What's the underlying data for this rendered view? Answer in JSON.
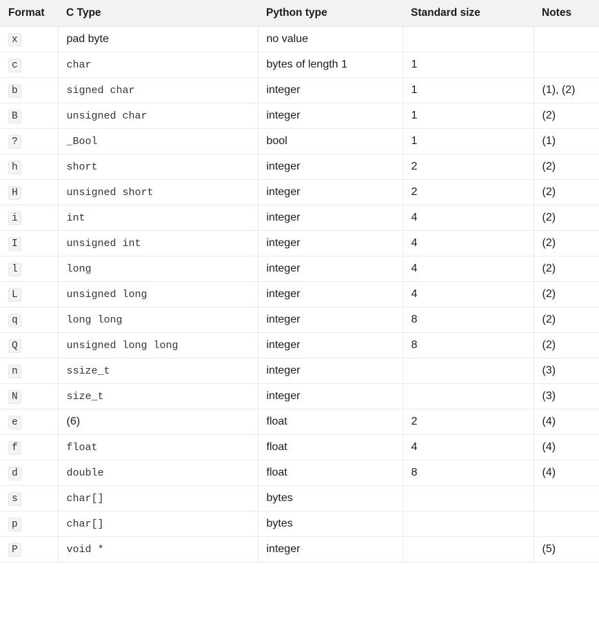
{
  "headers": {
    "format": "Format",
    "ctype": "C Type",
    "pytype": "Python type",
    "size": "Standard size",
    "notes": "Notes"
  },
  "rows": [
    {
      "format": "x",
      "ctype": "pad byte",
      "ctype_mono": false,
      "pytype": "no value",
      "size": "",
      "notes": ""
    },
    {
      "format": "c",
      "ctype": "char",
      "ctype_mono": true,
      "pytype": "bytes of length 1",
      "size": "1",
      "notes": ""
    },
    {
      "format": "b",
      "ctype": "signed char",
      "ctype_mono": true,
      "pytype": "integer",
      "size": "1",
      "notes": "(1), (2)"
    },
    {
      "format": "B",
      "ctype": "unsigned char",
      "ctype_mono": true,
      "pytype": "integer",
      "size": "1",
      "notes": "(2)"
    },
    {
      "format": "?",
      "ctype": "_Bool",
      "ctype_mono": true,
      "pytype": "bool",
      "size": "1",
      "notes": "(1)"
    },
    {
      "format": "h",
      "ctype": "short",
      "ctype_mono": true,
      "pytype": "integer",
      "size": "2",
      "notes": "(2)"
    },
    {
      "format": "H",
      "ctype": "unsigned short",
      "ctype_mono": true,
      "pytype": "integer",
      "size": "2",
      "notes": "(2)"
    },
    {
      "format": "i",
      "ctype": "int",
      "ctype_mono": true,
      "pytype": "integer",
      "size": "4",
      "notes": "(2)"
    },
    {
      "format": "I",
      "ctype": "unsigned int",
      "ctype_mono": true,
      "pytype": "integer",
      "size": "4",
      "notes": "(2)"
    },
    {
      "format": "l",
      "ctype": "long",
      "ctype_mono": true,
      "pytype": "integer",
      "size": "4",
      "notes": "(2)"
    },
    {
      "format": "L",
      "ctype": "unsigned long",
      "ctype_mono": true,
      "pytype": "integer",
      "size": "4",
      "notes": "(2)"
    },
    {
      "format": "q",
      "ctype": "long long",
      "ctype_mono": true,
      "pytype": "integer",
      "size": "8",
      "notes": "(2)"
    },
    {
      "format": "Q",
      "ctype": "unsigned long long",
      "ctype_mono": true,
      "pytype": "integer",
      "size": "8",
      "notes": "(2)"
    },
    {
      "format": "n",
      "ctype": "ssize_t",
      "ctype_mono": true,
      "pytype": "integer",
      "size": "",
      "notes": "(3)"
    },
    {
      "format": "N",
      "ctype": "size_t",
      "ctype_mono": true,
      "pytype": "integer",
      "size": "",
      "notes": "(3)"
    },
    {
      "format": "e",
      "ctype": "(6)",
      "ctype_mono": false,
      "pytype": "float",
      "size": "2",
      "notes": "(4)"
    },
    {
      "format": "f",
      "ctype": "float",
      "ctype_mono": true,
      "pytype": "float",
      "size": "4",
      "notes": "(4)"
    },
    {
      "format": "d",
      "ctype": "double",
      "ctype_mono": true,
      "pytype": "float",
      "size": "8",
      "notes": "(4)"
    },
    {
      "format": "s",
      "ctype": "char[]",
      "ctype_mono": true,
      "pytype": "bytes",
      "size": "",
      "notes": ""
    },
    {
      "format": "p",
      "ctype": "char[]",
      "ctype_mono": true,
      "pytype": "bytes",
      "size": "",
      "notes": ""
    },
    {
      "format": "P",
      "ctype": "void *",
      "ctype_mono": true,
      "pytype": "integer",
      "size": "",
      "notes": "(5)"
    }
  ]
}
